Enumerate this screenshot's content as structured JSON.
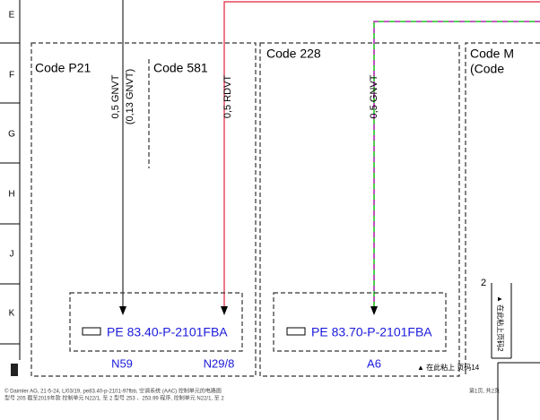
{
  "rows": [
    "E",
    "F",
    "G",
    "H",
    "J",
    "K"
  ],
  "zones": {
    "p21": "Code P21",
    "c581": "Code 581",
    "c228": "Code 228",
    "cm": "Code M",
    "cm2": "(Code"
  },
  "wires": {
    "w1": "0,5 GNVT",
    "w1b": "(0,13 GNVT)",
    "w2": "0,5 RDVT",
    "w3": "0,5 GNVT"
  },
  "links": [
    "PE 83.40-P-2101FBA",
    "PE 83.70-P-2101FBA"
  ],
  "components": [
    "N59",
    "N29/8",
    "A6"
  ],
  "paste_note": "▲ 在此粘上 页码14",
  "side_num": "2",
  "side_note": "▲ 在此粘上页码2",
  "footer": {
    "line1": "© Daimler AG,  21-5-24,  L/03/19,  pe83.40-p-2101-97fbb,  空调系统 (AAC) 控制单元的电路图",
    "line2": "型号 205 截至2019年款 控制单元 N22/1, 至 2 型号 253 、253.99 程序, 控制单元 N22/1, 至 2",
    "page": "第1页, 共2页"
  }
}
